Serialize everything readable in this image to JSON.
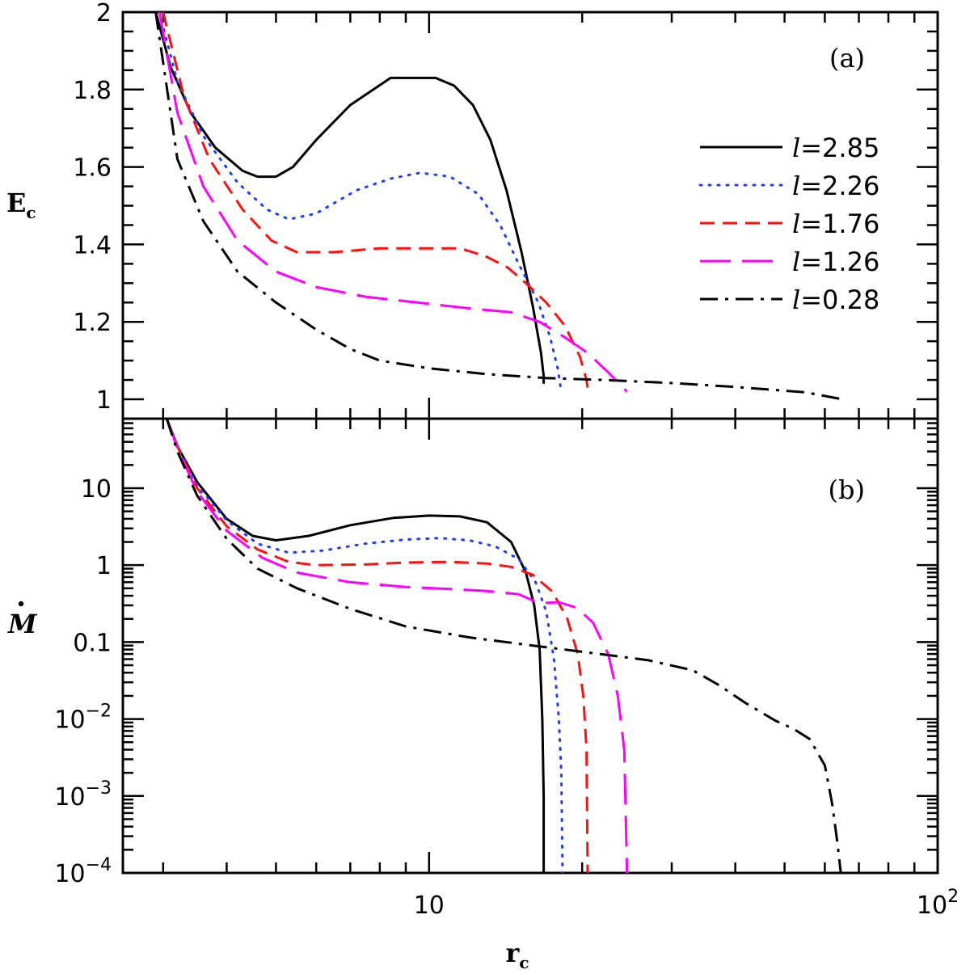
{
  "chart_data": [
    {
      "panel_label": "(a)",
      "type": "line",
      "ylabel": "E",
      "ylabel_sub": "c",
      "xscale": "log",
      "xlim": [
        2.5,
        100
      ],
      "ylim": [
        0.95,
        2.0
      ],
      "yticks": [
        {
          "value": 1.0,
          "label": "1"
        },
        {
          "value": 1.2,
          "label": "1.2"
        },
        {
          "value": 1.4,
          "label": "1.4"
        },
        {
          "value": 1.6,
          "label": "1.6"
        },
        {
          "value": 1.8,
          "label": "1.8"
        },
        {
          "value": 2.0,
          "label": "2"
        }
      ],
      "legend_position": "right",
      "series": [
        {
          "name": "l=2.85",
          "color": "#000000",
          "dash": "solid",
          "points": [
            [
              2.9,
              2.0
            ],
            [
              3.1,
              1.86
            ],
            [
              3.4,
              1.74
            ],
            [
              3.8,
              1.65
            ],
            [
              4.3,
              1.59
            ],
            [
              4.6,
              1.575
            ],
            [
              5.0,
              1.575
            ],
            [
              5.4,
              1.6
            ],
            [
              6.0,
              1.67
            ],
            [
              7.0,
              1.76
            ],
            [
              8.4,
              1.83
            ],
            [
              10.3,
              1.83
            ],
            [
              11.2,
              1.81
            ],
            [
              12.2,
              1.76
            ],
            [
              13.2,
              1.67
            ],
            [
              14.2,
              1.54
            ],
            [
              15.2,
              1.38
            ],
            [
              16.0,
              1.24
            ],
            [
              16.6,
              1.12
            ],
            [
              16.8,
              1.06
            ],
            [
              16.8,
              1.04
            ]
          ]
        },
        {
          "name": "l=2.26",
          "color": "#1f3cff",
          "dash": "dotted",
          "points": [
            [
              2.95,
              2.0
            ],
            [
              3.2,
              1.82
            ],
            [
              3.6,
              1.68
            ],
            [
              4.2,
              1.56
            ],
            [
              4.8,
              1.49
            ],
            [
              5.3,
              1.465
            ],
            [
              6.0,
              1.48
            ],
            [
              7.2,
              1.54
            ],
            [
              8.4,
              1.57
            ],
            [
              9.6,
              1.585
            ],
            [
              11.0,
              1.575
            ],
            [
              12.5,
              1.53
            ],
            [
              13.8,
              1.45
            ],
            [
              15.0,
              1.35
            ],
            [
              16.4,
              1.25
            ],
            [
              17.3,
              1.16
            ],
            [
              17.9,
              1.08
            ],
            [
              18.2,
              1.02
            ]
          ]
        },
        {
          "name": "l=1.76",
          "color": "#ff1010",
          "dash": "dashed",
          "points": [
            [
              3.0,
              2.0
            ],
            [
              3.3,
              1.78
            ],
            [
              3.7,
              1.62
            ],
            [
              4.3,
              1.49
            ],
            [
              4.9,
              1.41
            ],
            [
              5.5,
              1.38
            ],
            [
              6.5,
              1.38
            ],
            [
              8.0,
              1.39
            ],
            [
              10.0,
              1.39
            ],
            [
              11.5,
              1.39
            ],
            [
              12.9,
              1.37
            ],
            [
              14.3,
              1.34
            ],
            [
              15.5,
              1.3
            ],
            [
              17.0,
              1.25
            ],
            [
              18.5,
              1.19
            ],
            [
              19.8,
              1.11
            ],
            [
              20.4,
              1.05
            ],
            [
              20.6,
              1.01
            ]
          ]
        },
        {
          "name": "l=1.26",
          "color": "#ff00ff",
          "dash": "longdash",
          "points": [
            [
              2.95,
              2.0
            ],
            [
              3.2,
              1.74
            ],
            [
              3.6,
              1.55
            ],
            [
              4.2,
              1.41
            ],
            [
              5.0,
              1.33
            ],
            [
              6.0,
              1.29
            ],
            [
              7.5,
              1.265
            ],
            [
              9.5,
              1.25
            ],
            [
              12.0,
              1.235
            ],
            [
              14.5,
              1.225
            ],
            [
              16.5,
              1.2
            ],
            [
              18.5,
              1.16
            ],
            [
              20.5,
              1.12
            ],
            [
              22.5,
              1.07
            ],
            [
              24.5,
              1.02
            ]
          ]
        },
        {
          "name": "l=0.28",
          "color": "#000000",
          "dash": "dashdot",
          "points": [
            [
              2.9,
              2.0
            ],
            [
              3.2,
              1.62
            ],
            [
              3.6,
              1.46
            ],
            [
              4.2,
              1.33
            ],
            [
              5.0,
              1.25
            ],
            [
              6.0,
              1.18
            ],
            [
              7.0,
              1.13
            ],
            [
              8.0,
              1.1
            ],
            [
              10.0,
              1.08
            ],
            [
              13.0,
              1.065
            ],
            [
              17.0,
              1.055
            ],
            [
              22.0,
              1.05
            ],
            [
              30.0,
              1.042
            ],
            [
              40.0,
              1.032
            ],
            [
              55.0,
              1.018
            ],
            [
              65.0,
              1.0
            ]
          ]
        }
      ]
    },
    {
      "panel_label": "(b)",
      "type": "line",
      "ylabel": "M",
      "xscale": "log",
      "yscale": "log",
      "xlim": [
        2.5,
        100
      ],
      "ylim": [
        0.0001,
        80
      ],
      "yticks": [
        {
          "value": 0.0001,
          "base": "10",
          "exp": "−4"
        },
        {
          "value": 0.001,
          "base": "10",
          "exp": "−3"
        },
        {
          "value": 0.01,
          "base": "10",
          "exp": "−2"
        },
        {
          "value": 0.1,
          "base": "0.1",
          "exp": ""
        },
        {
          "value": 1,
          "base": "1",
          "exp": ""
        },
        {
          "value": 10,
          "base": "10",
          "exp": ""
        }
      ],
      "series": [
        {
          "name": "l=2.85",
          "color": "#000000",
          "dash": "solid",
          "points": [
            [
              3.05,
              80
            ],
            [
              3.2,
              35
            ],
            [
              3.5,
              12
            ],
            [
              4.0,
              4.0
            ],
            [
              4.5,
              2.4
            ],
            [
              5.0,
              2.1
            ],
            [
              5.8,
              2.4
            ],
            [
              7.0,
              3.3
            ],
            [
              8.5,
              4.1
            ],
            [
              10.0,
              4.4
            ],
            [
              11.5,
              4.3
            ],
            [
              13.0,
              3.6
            ],
            [
              14.5,
              2.0
            ],
            [
              15.5,
              0.8
            ],
            [
              16.1,
              0.3
            ],
            [
              16.5,
              0.08
            ],
            [
              16.7,
              0.01
            ],
            [
              16.8,
              0.001
            ],
            [
              16.8,
              0.0001
            ]
          ]
        },
        {
          "name": "l=2.26",
          "color": "#1f3cff",
          "dash": "dotted",
          "points": [
            [
              3.05,
              80
            ],
            [
              3.2,
              35
            ],
            [
              3.5,
              11
            ],
            [
              4.0,
              3.8
            ],
            [
              4.6,
              1.9
            ],
            [
              5.3,
              1.45
            ],
            [
              6.2,
              1.55
            ],
            [
              7.5,
              1.9
            ],
            [
              9.0,
              2.15
            ],
            [
              10.5,
              2.25
            ],
            [
              12.0,
              2.1
            ],
            [
              13.5,
              1.75
            ],
            [
              15.0,
              1.2
            ],
            [
              16.2,
              0.6
            ],
            [
              17.0,
              0.25
            ],
            [
              17.6,
              0.06
            ],
            [
              18.0,
              0.01
            ],
            [
              18.2,
              0.002
            ],
            [
              18.3,
              0.0001
            ]
          ]
        },
        {
          "name": "l=1.76",
          "color": "#ff1010",
          "dash": "dashed",
          "points": [
            [
              3.05,
              80
            ],
            [
              3.2,
              35
            ],
            [
              3.5,
              10
            ],
            [
              4.0,
              3.2
            ],
            [
              4.6,
              1.6
            ],
            [
              5.3,
              1.1
            ],
            [
              6.0,
              1.0
            ],
            [
              7.5,
              1.02
            ],
            [
              9.0,
              1.08
            ],
            [
              11.0,
              1.1
            ],
            [
              13.0,
              1.05
            ],
            [
              14.5,
              0.95
            ],
            [
              16.0,
              0.75
            ],
            [
              17.5,
              0.45
            ],
            [
              18.7,
              0.2
            ],
            [
              19.6,
              0.07
            ],
            [
              20.1,
              0.02
            ],
            [
              20.4,
              0.004
            ],
            [
              20.5,
              0.0001
            ]
          ]
        },
        {
          "name": "l=1.26",
          "color": "#ff00ff",
          "dash": "longdash",
          "points": [
            [
              3.05,
              80
            ],
            [
              3.2,
              33
            ],
            [
              3.5,
              9
            ],
            [
              4.0,
              2.8
            ],
            [
              4.7,
              1.25
            ],
            [
              5.5,
              0.8
            ],
            [
              7.0,
              0.6
            ],
            [
              9.0,
              0.52
            ],
            [
              11.0,
              0.49
            ],
            [
              13.0,
              0.46
            ],
            [
              15.0,
              0.42
            ],
            [
              16.5,
              0.32
            ],
            [
              18.0,
              0.33
            ],
            [
              19.5,
              0.28
            ],
            [
              21.0,
              0.18
            ],
            [
              22.5,
              0.07
            ],
            [
              23.5,
              0.02
            ],
            [
              24.2,
              0.004
            ],
            [
              24.5,
              0.0001
            ]
          ]
        },
        {
          "name": "l=0.28",
          "color": "#000000",
          "dash": "dashdot",
          "points": [
            [
              3.05,
              80
            ],
            [
              3.2,
              30
            ],
            [
              3.5,
              8
            ],
            [
              4.0,
              2.2
            ],
            [
              4.6,
              0.9
            ],
            [
              5.5,
              0.5
            ],
            [
              7.0,
              0.27
            ],
            [
              9.0,
              0.16
            ],
            [
              12.0,
              0.115
            ],
            [
              16.0,
              0.09
            ],
            [
              21.0,
              0.072
            ],
            [
              27.0,
              0.058
            ],
            [
              33.0,
              0.043
            ],
            [
              37.0,
              0.028
            ],
            [
              42.0,
              0.016
            ],
            [
              48.0,
              0.0095
            ],
            [
              52.0,
              0.0075
            ],
            [
              56.0,
              0.0055
            ],
            [
              60.0,
              0.0025
            ],
            [
              62.0,
              0.0008
            ],
            [
              63.5,
              0.00025
            ],
            [
              64.5,
              0.0001
            ]
          ]
        }
      ]
    }
  ],
  "x_axis": {
    "label": "r",
    "label_sub": "c",
    "ticks": [
      {
        "value": 10,
        "base": "10",
        "exp": ""
      },
      {
        "value": 100,
        "base": "10",
        "exp": "2"
      }
    ]
  },
  "legend": [
    {
      "prefix": "l",
      "text": "=2.85"
    },
    {
      "prefix": "l",
      "text": "=2.26"
    },
    {
      "prefix": "l",
      "text": "=1.76"
    },
    {
      "prefix": "l",
      "text": "=1.26"
    },
    {
      "prefix": "l",
      "text": "=0.28"
    }
  ]
}
